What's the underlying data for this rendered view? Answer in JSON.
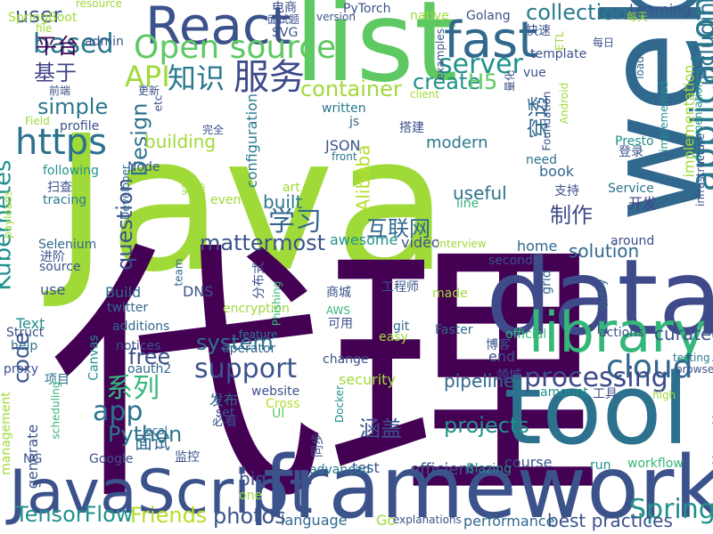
{
  "palette": {
    "purple": "#440154",
    "indigo": "#3b528b",
    "blue": "#31688e",
    "teal": "#21918c",
    "green": "#35b779",
    "lime": "#6ece58",
    "yellow": "#b5de2b"
  },
  "words": [
    {
      "text": "Java",
      "color": "#a0da39",
      "rotate": false
    },
    {
      "text": "代理",
      "color": "#440154",
      "rotate": false
    },
    {
      "text": "web",
      "color": "#31688e",
      "rotate": true
    },
    {
      "text": "data",
      "color": "#3e4a89",
      "rotate": false
    },
    {
      "text": "list",
      "color": "#5ec962",
      "rotate": false
    },
    {
      "text": "tool",
      "color": "#2c728e",
      "rotate": false
    },
    {
      "text": "framework",
      "color": "#3b528b",
      "rotate": false
    },
    {
      "text": "JavaScript",
      "color": "#3b528b",
      "rotate": false
    },
    {
      "text": "library",
      "color": "#35b779",
      "rotate": false
    },
    {
      "text": "React",
      "color": "#3b528b",
      "rotate": false
    },
    {
      "text": "fast",
      "color": "#31688e",
      "rotate": false
    },
    {
      "text": "application",
      "color": "#2a788e",
      "rotate": true
    },
    {
      "text": "Open source",
      "color": "#5ec962",
      "rotate": false
    },
    {
      "text": "GitHub",
      "color": "#2a788e",
      "rotate": true
    },
    {
      "text": "Kubernetes",
      "color": "#21918c",
      "rotate": true
    },
    {
      "text": "https",
      "color": "#2c728e",
      "rotate": false
    },
    {
      "text": "服务",
      "color": "#3e4a89",
      "rotate": false
    },
    {
      "text": "知识",
      "color": "#2a788e",
      "rotate": false
    },
    {
      "text": "API",
      "color": "#a0da39",
      "rotate": false
    },
    {
      "text": "based",
      "color": "#2a788e",
      "rotate": false
    },
    {
      "text": "server",
      "color": "#21918c",
      "rotate": false
    },
    {
      "text": "collection",
      "color": "#2a788e",
      "rotate": false
    },
    {
      "text": "including",
      "color": "#2c728e",
      "rotate": true
    },
    {
      "text": "平台",
      "color": "#440154",
      "rotate": false
    },
    {
      "text": "基于",
      "color": "#414487",
      "rotate": false
    },
    {
      "text": "user",
      "color": "#3b528b",
      "rotate": false
    },
    {
      "text": "simple",
      "color": "#2a788e",
      "rotate": false
    },
    {
      "text": "container",
      "color": "#a0da39",
      "rotate": false
    },
    {
      "text": "create",
      "color": "#21918c",
      "rotate": false
    },
    {
      "text": "H5",
      "color": "#5ec962",
      "rotate": false
    },
    {
      "text": "Design",
      "color": "#2c728e",
      "rotate": true
    },
    {
      "text": "学习",
      "color": "#31688e",
      "rotate": false
    },
    {
      "text": "Alibaba",
      "color": "#b5de2b",
      "rotate": true
    },
    {
      "text": "互联网",
      "color": "#31688e",
      "rotate": false
    },
    {
      "text": "穿透",
      "color": "#31688e",
      "rotate": true
    },
    {
      "text": "distributed",
      "color": "#3b528b",
      "rotate": true
    },
    {
      "text": "cloud",
      "color": "#31688e",
      "rotate": false
    },
    {
      "text": "Spring",
      "color": "#21918c",
      "rotate": false
    },
    {
      "text": "support",
      "color": "#3b528b",
      "rotate": false
    },
    {
      "text": "processing",
      "color": "#3e4a89",
      "rotate": false
    },
    {
      "text": "system",
      "color": "#2c728e",
      "rotate": false
    },
    {
      "text": "code",
      "color": "#3b528b",
      "rotate": true
    },
    {
      "text": "app",
      "color": "#2c728e",
      "rotate": false
    },
    {
      "text": "question",
      "color": "#3b528b",
      "rotate": true
    },
    {
      "text": "mattermost",
      "color": "#3b528b",
      "rotate": false
    },
    {
      "text": "系列",
      "color": "#35b779",
      "rotate": false
    },
    {
      "text": "free",
      "color": "#3b528b",
      "rotate": false
    },
    {
      "text": "Python",
      "color": "#2a788e",
      "rotate": false
    },
    {
      "text": "projects",
      "color": "#21918c",
      "rotate": false
    },
    {
      "text": "TensorFlow",
      "color": "#21918c",
      "rotate": false
    },
    {
      "text": "Friends",
      "color": "#b5de2b",
      "rotate": false
    },
    {
      "text": "photos",
      "color": "#3b528b",
      "rotate": false
    },
    {
      "text": "big",
      "color": "#3b528b",
      "rotate": false
    },
    {
      "text": "制作",
      "color": "#3e4a89",
      "rotate": false
    },
    {
      "text": "涵盖",
      "color": "#3b528b",
      "rotate": false
    },
    {
      "text": "pipeline",
      "color": "#31688e",
      "rotate": false
    },
    {
      "text": "curated",
      "color": "#3b528b",
      "rotate": false
    },
    {
      "text": "solution",
      "color": "#31688e",
      "rotate": false
    },
    {
      "text": "useful",
      "color": "#2c728e",
      "rotate": false
    },
    {
      "text": "modern",
      "color": "#2a788e",
      "rotate": false
    },
    {
      "text": "built",
      "color": "#2a788e",
      "rotate": false
    },
    {
      "text": "building",
      "color": "#a0da39",
      "rotate": false
    },
    {
      "text": "configuration",
      "color": "#2a788e",
      "rotate": true
    },
    {
      "text": "implementation",
      "color": "#a0da39",
      "rotate": true
    },
    {
      "text": "generate",
      "color": "#3b528b",
      "rotate": true
    },
    {
      "text": "面试",
      "color": "#31688e",
      "rotate": false
    },
    {
      "text": "best practices",
      "color": "#3b528b",
      "rotate": false
    },
    {
      "text": "efficient",
      "color": "#3b528b",
      "rotate": false
    },
    {
      "text": "performance",
      "color": "#31688e",
      "rotate": false
    },
    {
      "text": "language",
      "color": "#31688e",
      "rotate": false
    },
    {
      "text": "Go",
      "color": "#a0da39",
      "rotate": false
    },
    {
      "text": "course",
      "color": "#3b528b",
      "rotate": false
    },
    {
      "text": "workflow",
      "color": "#35b779",
      "rotate": false
    },
    {
      "text": "Blazing",
      "color": "#21918c",
      "rotate": false
    },
    {
      "text": "run",
      "color": "#21918c",
      "rotate": false
    },
    {
      "text": "test",
      "color": "#3b528b",
      "rotate": false
    },
    {
      "text": "advanced",
      "color": "#2a788e",
      "rotate": false
    },
    {
      "text": "security",
      "color": "#a0da39",
      "rotate": false
    },
    {
      "text": "end",
      "color": "#3b528b",
      "rotate": false
    },
    {
      "text": "Build",
      "color": "#31688e",
      "rotate": false
    },
    {
      "text": "twitter",
      "color": "#31688e",
      "rotate": false
    },
    {
      "text": "DNS",
      "color": "#3b528b",
      "rotate": false
    },
    {
      "text": "awesome",
      "color": "#21918c",
      "rotate": false
    },
    {
      "text": "video",
      "color": "#3b528b",
      "rotate": false
    },
    {
      "text": "home",
      "color": "#31688e",
      "rotate": false
    },
    {
      "text": "seconds",
      "color": "#3b528b",
      "rotate": false
    },
    {
      "text": "around",
      "color": "#3e4a89",
      "rotate": false
    },
    {
      "text": "Service",
      "color": "#2c728e",
      "rotate": false
    },
    {
      "text": "开发",
      "color": "#414487",
      "rotate": false
    },
    {
      "text": "book",
      "color": "#31688e",
      "rotate": false
    },
    {
      "text": "need",
      "color": "#2c728e",
      "rotate": false
    },
    {
      "text": "Presto",
      "color": "#21918c",
      "rotate": false
    },
    {
      "text": "登录",
      "color": "#3b528b",
      "rotate": false
    },
    {
      "text": "written",
      "color": "#2a788e",
      "rotate": false
    },
    {
      "text": "js",
      "color": "#31688e",
      "rotate": false
    },
    {
      "text": "JSON",
      "color": "#3b528b",
      "rotate": false
    },
    {
      "text": "front",
      "color": "#2c728e",
      "rotate": false
    },
    {
      "text": "following",
      "color": "#21918c",
      "rotate": false
    },
    {
      "text": "Node",
      "color": "#3b528b",
      "rotate": false
    },
    {
      "text": "art",
      "color": "#a0da39",
      "rotate": false
    },
    {
      "text": "event",
      "color": "#a0da39",
      "rotate": false
    },
    {
      "text": "Developer",
      "color": "#31688e",
      "rotate": true
    },
    {
      "text": "实战",
      "color": "#a0da39",
      "rotate": false
    },
    {
      "text": "tracing",
      "color": "#2a788e",
      "rotate": false
    },
    {
      "text": "扫查",
      "color": "#3b528b",
      "rotate": false
    },
    {
      "text": "Selenium",
      "color": "#31688e",
      "rotate": false
    },
    {
      "text": "进阶",
      "color": "#3b528b",
      "rotate": false
    },
    {
      "text": "source",
      "color": "#3b528b",
      "rotate": false
    },
    {
      "text": "payloads",
      "color": "#a0da39",
      "rotate": true
    },
    {
      "text": "use",
      "color": "#3b528b",
      "rotate": false
    },
    {
      "text": "Text",
      "color": "#21918c",
      "rotate": false
    },
    {
      "text": "Struct",
      "color": "#3b528b",
      "rotate": false
    },
    {
      "text": "help",
      "color": "#2c728e",
      "rotate": false
    },
    {
      "text": "proxy",
      "color": "#3b528b",
      "rotate": false
    },
    {
      "text": "项目",
      "color": "#2c728e",
      "rotate": false
    },
    {
      "text": "Canvas",
      "color": "#21918c",
      "rotate": true
    },
    {
      "text": "management",
      "color": "#a0da39",
      "rotate": true
    },
    {
      "text": "scheduling",
      "color": "#35b779",
      "rotate": true
    },
    {
      "text": "NG",
      "color": "#3b528b",
      "rotate": false
    },
    {
      "text": "Google",
      "color": "#3b528b",
      "rotate": false
    },
    {
      "text": "监控",
      "color": "#3b528b",
      "rotate": false
    },
    {
      "text": "local",
      "color": "#31688e",
      "rotate": false
    },
    {
      "text": "oauth2",
      "color": "#31688e",
      "rotate": false
    },
    {
      "text": "notices",
      "color": "#3b528b",
      "rotate": false
    },
    {
      "text": "additions",
      "color": "#31688e",
      "rotate": false
    },
    {
      "text": "team",
      "color": "#31688e",
      "rotate": true
    },
    {
      "text": "encryption",
      "color": "#a0da39",
      "rotate": false
    },
    {
      "text": "分布式",
      "color": "#3b528b",
      "rotate": true
    },
    {
      "text": "Phishing",
      "color": "#35b779",
      "rotate": true
    },
    {
      "text": "feature",
      "color": "#2a788e",
      "rotate": false
    },
    {
      "text": "operator",
      "color": "#31688e",
      "rotate": false
    },
    {
      "text": "website",
      "color": "#3b528b",
      "rotate": false
    },
    {
      "text": "发布",
      "color": "#31688e",
      "rotate": false
    },
    {
      "text": "set",
      "color": "#3b528b",
      "rotate": false
    },
    {
      "text": "必看",
      "color": "#3b528b",
      "rotate": false
    },
    {
      "text": "UI",
      "color": "#5ec962",
      "rotate": false
    },
    {
      "text": "Cross",
      "color": "#b5de2b",
      "rotate": false
    },
    {
      "text": "Docker",
      "color": "#21918c",
      "rotate": true
    },
    {
      "text": "同步",
      "color": "#3b528b",
      "rotate": true
    },
    {
      "text": "AWS",
      "color": "#35b779",
      "rotate": false
    },
    {
      "text": "可用",
      "color": "#3b528b",
      "rotate": false
    },
    {
      "text": "商城",
      "color": "#3b528b",
      "rotate": false
    },
    {
      "text": "change",
      "color": "#3b528b",
      "rotate": false
    },
    {
      "text": "工程师",
      "color": "#3b528b",
      "rotate": false
    },
    {
      "text": "git",
      "color": "#31688e",
      "rotate": false
    },
    {
      "text": "easy",
      "color": "#a0da39",
      "rotate": false
    },
    {
      "text": "made",
      "color": "#a0da39",
      "rotate": false
    },
    {
      "text": "Faster",
      "color": "#31688e",
      "rotate": false
    },
    {
      "text": "official",
      "color": "#35b779",
      "rotate": false
    },
    {
      "text": "博客",
      "color": "#3b528b",
      "rotate": false
    },
    {
      "text": "领域",
      "color": "#3b528b",
      "rotate": false
    },
    {
      "text": "actions",
      "color": "#3b528b",
      "rotate": false
    },
    {
      "text": "query",
      "color": "#31688e",
      "rotate": true
    },
    {
      "text": "grid",
      "color": "#31688e",
      "rotate": true
    },
    {
      "text": "testing",
      "color": "#2a788e",
      "rotate": false
    },
    {
      "text": "browser",
      "color": "#3b528b",
      "rotate": false
    },
    {
      "text": "工具",
      "color": "#3b528b",
      "rotate": false
    },
    {
      "text": "amount",
      "color": "#21918c",
      "rotate": false
    },
    {
      "text": "high",
      "color": "#a0da39",
      "rotate": false
    },
    {
      "text": "interview",
      "color": "#a0da39",
      "rotate": false
    },
    {
      "text": "explanations",
      "color": "#3b528b",
      "rotate": false
    },
    {
      "text": "one",
      "color": "#a0da39",
      "rotate": false
    },
    {
      "text": "line",
      "color": "#35b779",
      "rotate": false
    },
    {
      "text": "Learning",
      "color": "#3b528b",
      "rotate": false
    },
    {
      "text": "每天",
      "color": "#a0da39",
      "rotate": false
    },
    {
      "text": "每日",
      "color": "#3b528b",
      "rotate": false
    },
    {
      "text": "Golang",
      "color": "#3b528b",
      "rotate": false
    },
    {
      "text": "native",
      "color": "#a0da39",
      "rotate": false
    },
    {
      "text": "PyTorch",
      "color": "#3b528b",
      "rotate": false
    },
    {
      "text": "version",
      "color": "#3b528b",
      "rotate": false
    },
    {
      "text": "电商",
      "color": "#3b528b",
      "rotate": false
    },
    {
      "text": "面试题",
      "color": "#3b528b",
      "rotate": false
    },
    {
      "text": "SVG",
      "color": "#3b528b",
      "rotate": false
    },
    {
      "text": "resource",
      "color": "#a0da39",
      "rotate": false
    },
    {
      "text": "SpringBoot",
      "color": "#a0da39",
      "rotate": false
    },
    {
      "text": "file",
      "color": "#a0da39",
      "rotate": false
    },
    {
      "text": "admin",
      "color": "#3b528b",
      "rotate": false
    },
    {
      "text": "快速",
      "color": "#3b528b",
      "rotate": false
    },
    {
      "text": "ETL",
      "color": "#a0da39",
      "rotate": true
    },
    {
      "text": "load",
      "color": "#31688e",
      "rotate": true
    },
    {
      "text": "template",
      "color": "#3b528b",
      "rotate": false
    },
    {
      "text": "vue",
      "color": "#3b528b",
      "rotate": false
    },
    {
      "text": "examples",
      "color": "#3b528b",
      "rotate": true
    },
    {
      "text": "client",
      "color": "#a0da39",
      "rotate": false
    },
    {
      "text": "量化",
      "color": "#3b528b",
      "rotate": true
    },
    {
      "text": "前端",
      "color": "#3b528b",
      "rotate": false
    },
    {
      "text": "更新",
      "color": "#3b528b",
      "rotate": false
    },
    {
      "text": "etc",
      "color": "#3b528b",
      "rotate": true
    },
    {
      "text": "profile",
      "color": "#3b528b",
      "rotate": false
    },
    {
      "text": "Field",
      "color": "#a0da39",
      "rotate": false
    },
    {
      "text": "完全",
      "color": "#3b528b",
      "rotate": false
    },
    {
      "text": "搭建",
      "color": "#3b528b",
      "rotate": false
    },
    {
      "text": "Foundation",
      "color": "#3b528b",
      "rotate": true
    },
    {
      "text": "Android",
      "color": "#a0da39",
      "rotate": true
    },
    {
      "text": "implemented",
      "color": "#21918c",
      "rotate": true
    },
    {
      "text": "documentation",
      "color": "#21918c",
      "rotate": true
    },
    {
      "text": "infrastructure",
      "color": "#3b528b",
      "rotate": true
    },
    {
      "text": "支持",
      "color": "#3b528b",
      "rotate": false
    }
  ]
}
